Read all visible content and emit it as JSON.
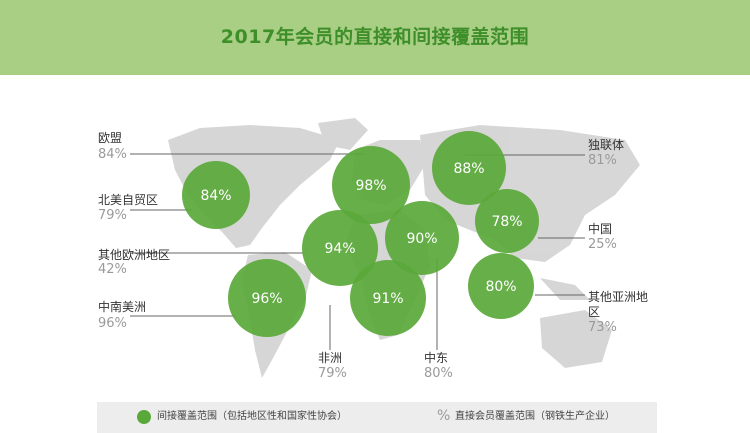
{
  "title": "2017年会员的直接和间接覆盖范围",
  "colors": {
    "header_bg": "#a9cf85",
    "title": "#3e8f2a",
    "bubble": "#5aa83a",
    "map": "#c9c9c9"
  },
  "chart_data": {
    "type": "bubble-map",
    "title": "2017年会员的直接和间接覆盖范围",
    "regions": [
      {
        "name": "欧盟",
        "direct": "84%",
        "indirect": "98%"
      },
      {
        "name": "北美自贸区",
        "direct": "79%",
        "indirect": "84%"
      },
      {
        "name": "其他欧洲地区",
        "direct": "42%",
        "indirect": "94%"
      },
      {
        "name": "中南美洲",
        "direct": "96%",
        "indirect": "96%"
      },
      {
        "name": "非洲",
        "direct": "79%",
        "indirect": "91%"
      },
      {
        "name": "中东",
        "direct": "80%",
        "indirect": "90%"
      },
      {
        "name": "独联体",
        "direct": "81%",
        "indirect": "88%"
      },
      {
        "name": "中国",
        "direct": "25%",
        "indirect": "78%"
      },
      {
        "name": "其他亚洲地区",
        "direct": "73%",
        "indirect": "80%"
      }
    ]
  },
  "legend": {
    "indirect_label": "间接覆盖范围（包括地区性和国家性协会）",
    "direct_symbol": "%",
    "direct_label": "直接会员覆盖范围（钢铁生产企业）"
  }
}
